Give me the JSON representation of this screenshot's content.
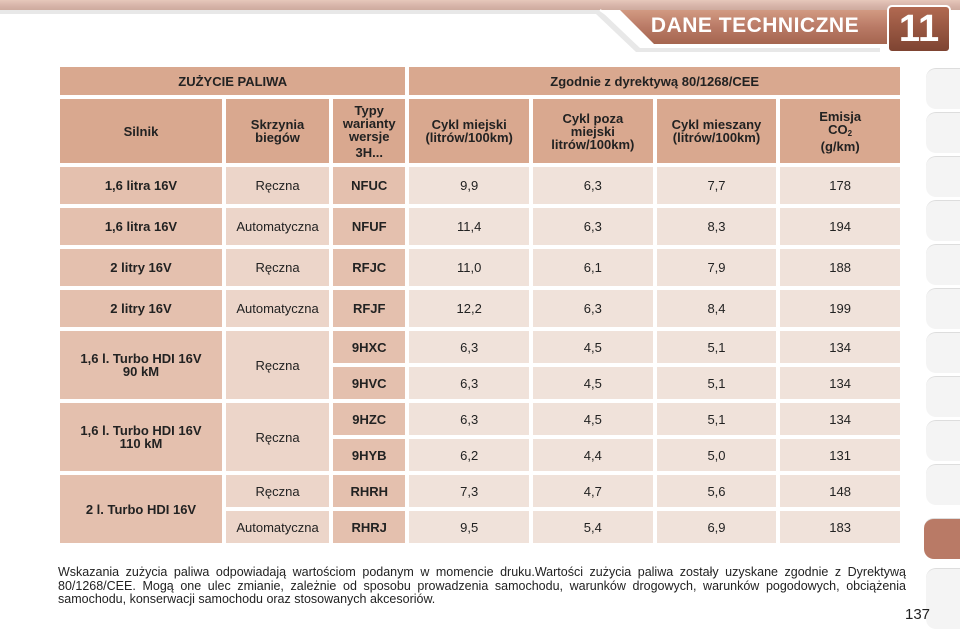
{
  "header": {
    "title": "DANE TECHNICZNE",
    "chapter": "11",
    "accent_color": "#b97a66",
    "dark_color": "#8a4f3c"
  },
  "table": {
    "group_headers": {
      "left": "ZUŻYCIE PALIWA",
      "right": "Zgodnie z dyrektywą 80/1268/CEE"
    },
    "columns": {
      "engine": "Silnik",
      "gearbox_line1": "Skrzynia",
      "gearbox_line2": "biegów",
      "variant_line1": "Typy",
      "variant_line2": "warianty",
      "variant_line3": "wersje",
      "variant_line4": "3H...",
      "urban_line1": "Cykl miejski",
      "urban_line2": "(litrów/100km)",
      "extra_line1": "Cykl poza",
      "extra_line2": "miejski",
      "extra_line3": "litrów/100km)",
      "combined_line1": "Cykl mieszany",
      "combined_line2": "(litrów/100km)",
      "co2_line1": "Emisja",
      "co2_line2": "CO",
      "co2_sub": "2",
      "co2_line3": "(g/km)"
    },
    "engines": [
      "1,6 litra 16V",
      "1,6 litra 16V",
      "2 litry 16V",
      "2 litry 16V",
      "1,6 l. Turbo HDI 16V",
      "90 kM",
      "1,6 l. Turbo HDI 16V",
      "110 kM",
      "2 l. Turbo HDI 16V"
    ],
    "gearboxes": [
      "Ręczna",
      "Automatyczna",
      "Ręczna",
      "Automatyczna",
      "Ręczna",
      "Ręczna",
      "Ręczna",
      "Automatyczna"
    ],
    "rows": [
      {
        "variant": "NFUC",
        "urban": "9,9",
        "extra": "6,3",
        "combined": "7,7",
        "co2": "178"
      },
      {
        "variant": "NFUF",
        "urban": "11,4",
        "extra": "6,3",
        "combined": "8,3",
        "co2": "194"
      },
      {
        "variant": "RFJC",
        "urban": "11,0",
        "extra": "6,1",
        "combined": "7,9",
        "co2": "188"
      },
      {
        "variant": "RFJF",
        "urban": "12,2",
        "extra": "6,3",
        "combined": "8,4",
        "co2": "199"
      },
      {
        "variant": "9HXC",
        "urban": "6,3",
        "extra": "4,5",
        "combined": "5,1",
        "co2": "134"
      },
      {
        "variant": "9HVC",
        "urban": "6,3",
        "extra": "4,5",
        "combined": "5,1",
        "co2": "134"
      },
      {
        "variant": "9HZC",
        "urban": "6,3",
        "extra": "4,5",
        "combined": "5,1",
        "co2": "134"
      },
      {
        "variant": "9HYB",
        "urban": "6,2",
        "extra": "4,4",
        "combined": "5,0",
        "co2": "131"
      },
      {
        "variant": "RHRH",
        "urban": "7,3",
        "extra": "4,7",
        "combined": "5,6",
        "co2": "148"
      },
      {
        "variant": "RHRJ",
        "urban": "9,5",
        "extra": "5,4",
        "combined": "6,9",
        "co2": "183"
      }
    ]
  },
  "footnote": "Wskazania zużycia paliwa odpowiadają wartościom podanym w momencie druku.Wartości zużycia paliwa zostały uzyskane zgodnie z Dyrektywą 80/1268/CEE. Mogą one ulec zmianie, zależnie od sposobu prowadzenia samochodu, warunków drogowych, warunków pogodowych, obciążenia samochodu, konserwacji samochodu oraz stosowanych akcesoriów.",
  "page_number": "137"
}
